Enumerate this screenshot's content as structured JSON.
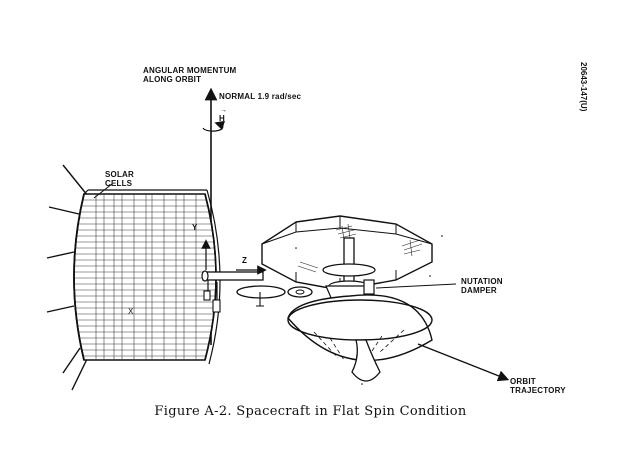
{
  "labels": {
    "angular_momentum_line1": "ANGULAR MOMENTUM",
    "angular_momentum_line2": "ALONG ORBIT",
    "normal": "NORMAL 1.9 rad/sec",
    "h_vector": "H",
    "solar_line1": "SOLAR",
    "solar_line2": "CELLS",
    "nutation_line1": "NUTATION",
    "nutation_line2": "DAMPER",
    "orbit_line1": "ORBIT",
    "orbit_line2": "TRAJECTORY",
    "axis_y": "Y",
    "axis_z": "Z",
    "axis_x": "X"
  },
  "figure_code": "20643-147(U)",
  "caption": "Figure A-2.  Spacecraft in Flat Spin Condition"
}
